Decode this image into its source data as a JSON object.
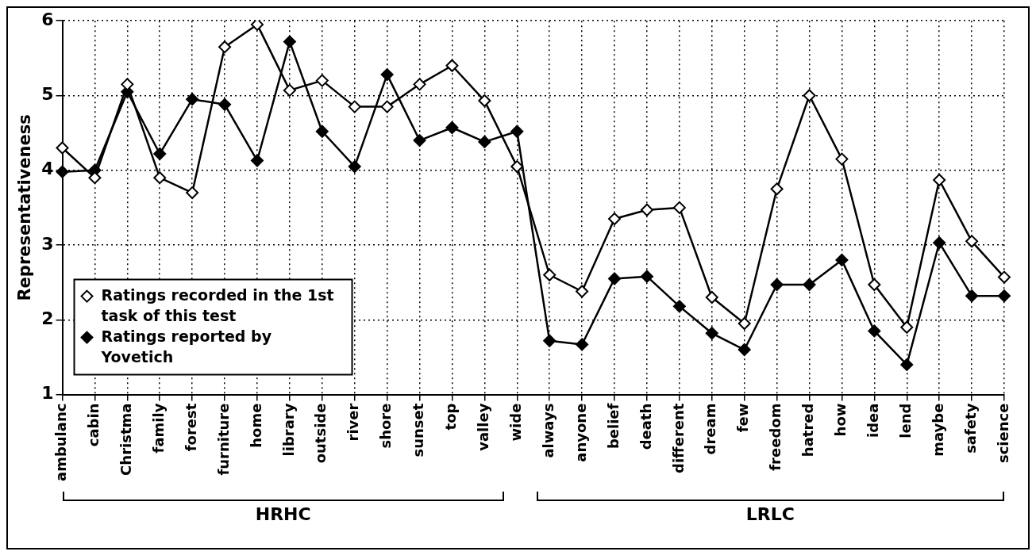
{
  "chart_data": {
    "type": "line",
    "ylabel": "Representativeness",
    "categories": [
      "ambulanc",
      "cabin",
      "Christma",
      "family",
      "forest",
      "furniture",
      "home",
      "library",
      "outside",
      "river",
      "shore",
      "sunset",
      "top",
      "valley",
      "wide",
      "always",
      "anyone",
      "belief",
      "death",
      "different",
      "dream",
      "few",
      "freedom",
      "hatred",
      "how",
      "idea",
      "lend",
      "maybe",
      "safety",
      "science"
    ],
    "series": [
      {
        "name": "Ratings recorded in the 1st task of this test",
        "color": "#000000",
        "values": [
          4.3,
          3.9,
          5.15,
          3.9,
          3.7,
          5.65,
          5.95,
          5.07,
          5.2,
          4.85,
          4.85,
          5.15,
          5.4,
          4.93,
          4.05,
          2.6,
          2.38,
          3.35,
          3.47,
          3.5,
          2.3,
          1.95,
          3.75,
          5.0,
          4.15,
          2.47,
          1.9,
          3.87,
          3.05,
          2.57
        ]
      },
      {
        "name": "Ratings reported by Yovetich",
        "color": "#000000",
        "values": [
          3.98,
          4.0,
          5.05,
          4.22,
          4.95,
          4.88,
          4.13,
          5.72,
          4.52,
          4.05,
          5.28,
          4.4,
          4.57,
          4.38,
          4.52,
          1.72,
          1.67,
          2.55,
          2.58,
          2.18,
          1.82,
          1.6,
          2.47,
          2.47,
          2.8,
          1.85,
          1.4,
          3.03,
          2.32,
          2.32
        ]
      }
    ],
    "ylim": [
      1,
      6
    ],
    "yticks": [
      1,
      2,
      3,
      4,
      5,
      6
    ],
    "grid": true,
    "legend": "bottom left",
    "marker": "diamond",
    "line_style": "solid",
    "annotations": [
      "HRHC",
      "LRLC"
    ]
  }
}
